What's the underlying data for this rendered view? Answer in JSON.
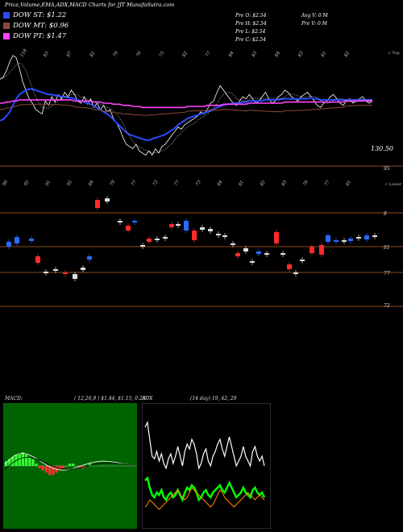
{
  "header": {
    "title": "Price,Volume,EMA,ADX,MACD Charts for JJT MunafaSutra.com"
  },
  "legend": [
    {
      "label": "DOW ST: $1.22",
      "color": "#2a4cff"
    },
    {
      "label": "DOW MT: $0.96",
      "color": "#8b4a3a"
    },
    {
      "label": "DOW PT: $1.47",
      "color": "#ff44ff"
    }
  ],
  "stats": {
    "pre_o": "Pre  O: $2.54",
    "pre_h": "Pre  H: $2.54",
    "pre_l": "Pre  L: $2.54",
    "pre_c": "Pre  C: $2.54",
    "avg_v": "Avg V: 0  M",
    "pre_v": "Pre  V: 0  M"
  },
  "price_panel": {
    "right_tag": "c Top",
    "last_price_label": "130.50",
    "axis_label": "95",
    "top_labels": [
      "118",
      "83",
      "87",
      "82",
      "79",
      "76",
      "73",
      "82",
      "77",
      "84",
      "83",
      "84",
      "83",
      "81",
      "82"
    ]
  },
  "candle_panel": {
    "right_tag": "c Lower",
    "top_labels": [
      "90",
      "95",
      "91",
      "95",
      "84",
      "79",
      "77",
      "73",
      "77",
      "73",
      "84",
      "81",
      "82",
      "83",
      "76",
      "77",
      "81"
    ],
    "axis_labels": [
      "8",
      "81",
      "77",
      "72"
    ]
  },
  "macd": {
    "label": "MACD:",
    "values": "( 12,26,9 ) $1.44, $1.15, 0.29"
  },
  "adx": {
    "label": "ADX",
    "values": "(14  day) 19,  42,  29"
  },
  "chart_data": [
    {
      "type": "line",
      "name": "Price with EMA",
      "x": [
        0,
        1,
        2,
        3,
        4,
        5,
        6,
        7,
        8,
        9,
        10,
        11,
        12,
        13,
        14,
        15,
        16,
        17,
        18,
        19,
        20,
        21,
        22,
        23,
        24,
        25,
        26,
        27,
        28,
        29,
        30,
        31,
        32,
        33,
        34,
        35,
        36,
        37,
        38,
        39,
        40,
        41,
        42,
        43,
        44,
        45,
        46,
        47,
        48,
        49,
        50,
        51,
        52,
        53,
        54,
        55,
        56,
        57,
        58,
        59,
        60,
        61,
        62,
        63,
        64,
        65,
        66,
        67,
        68,
        69,
        70,
        71,
        72,
        73,
        74,
        75,
        76,
        77,
        78,
        79,
        80,
        81,
        82,
        83,
        84,
        85,
        86,
        87,
        88,
        89,
        90,
        91,
        92,
        93,
        94,
        95,
        96,
        97,
        98,
        99,
        100,
        101,
        102,
        103,
        104,
        105,
        106,
        107,
        108,
        109,
        110,
        111,
        112,
        113,
        114,
        115
      ],
      "series": [
        {
          "color": "#ffffff",
          "values": [
            150,
            152,
            158,
            166,
            172,
            170,
            160,
            148,
            140,
            132,
            128,
            122,
            120,
            118,
            130,
            126,
            134,
            129,
            136,
            132,
            138,
            134,
            140,
            136,
            130,
            128,
            134,
            127,
            132,
            124,
            128,
            122,
            126,
            120,
            122,
            114,
            110,
            104,
            96,
            90,
            88,
            86,
            90,
            84,
            82,
            80,
            84,
            80,
            86,
            82,
            88,
            90,
            94,
            98,
            102,
            106,
            104,
            108,
            110,
            112,
            114,
            116,
            120,
            118,
            122,
            128,
            130,
            138,
            144,
            140,
            136,
            132,
            128,
            126,
            130,
            134,
            132,
            136,
            132,
            128,
            130,
            134,
            138,
            132,
            128,
            130,
            134,
            136,
            140,
            138,
            134,
            132,
            130,
            134,
            136,
            138,
            134,
            130,
            126,
            124,
            128,
            130,
            134,
            136,
            132,
            128,
            126,
            130,
            132,
            128,
            130,
            132,
            134,
            130,
            128,
            130
          ]
        },
        {
          "color": "#2a4cff",
          "values": [
            112,
            113,
            116,
            120,
            126,
            132,
            136,
            138,
            140,
            141,
            141,
            140,
            139,
            138,
            137,
            136,
            136,
            135,
            135,
            134,
            134,
            133,
            133,
            132,
            131,
            130,
            129,
            128,
            127,
            125,
            124,
            122,
            120,
            118,
            116,
            113,
            110,
            107,
            104,
            101,
            99,
            98,
            97,
            96,
            95,
            94,
            94,
            95,
            96,
            97,
            98,
            99,
            101,
            103,
            105,
            108,
            110,
            112,
            114,
            115,
            116,
            117,
            118,
            119,
            120,
            121,
            122,
            124,
            125,
            126,
            127,
            127,
            128,
            128,
            128,
            129,
            129,
            130,
            130,
            130,
            130,
            130,
            131,
            131,
            131,
            131,
            131,
            132,
            132,
            132,
            132,
            132,
            132,
            132,
            132,
            132,
            133,
            132,
            132,
            131,
            131,
            131,
            131,
            131,
            131,
            131,
            131,
            131,
            131,
            131,
            131,
            131,
            131,
            131,
            131,
            131
          ]
        },
        {
          "color": "#ff44ff",
          "values": [
            128,
            128,
            129,
            129,
            130,
            130,
            131,
            131,
            131,
            131,
            131,
            131,
            131,
            131,
            131,
            131,
            131,
            131,
            131,
            131,
            131,
            131,
            131,
            130,
            130,
            130,
            130,
            130,
            130,
            129,
            129,
            129,
            128,
            128,
            128,
            127,
            127,
            127,
            126,
            126,
            126,
            125,
            125,
            125,
            124,
            124,
            124,
            124,
            124,
            124,
            124,
            124,
            124,
            124,
            124,
            124,
            124,
            124,
            125,
            125,
            125,
            125,
            125,
            125,
            126,
            126,
            126,
            126,
            126,
            127,
            127,
            127,
            127,
            127,
            127,
            127,
            127,
            128,
            128,
            128,
            128,
            128,
            128,
            128,
            128,
            128,
            128,
            128,
            129,
            129,
            129,
            129,
            129,
            129,
            129,
            129,
            129,
            129,
            129,
            129,
            129,
            129,
            129,
            129,
            129,
            129,
            129,
            130,
            130,
            130,
            130,
            130,
            130,
            130,
            130,
            130
          ]
        }
      ]
    },
    {
      "type": "bar",
      "name": "MACD histogram",
      "values": [
        0.2,
        0.3,
        0.4,
        0.5,
        0.5,
        0.6,
        0.5,
        0.4,
        0.3,
        0.1,
        -0.1,
        -0.2,
        -0.3,
        -0.4,
        -0.4,
        -0.3,
        -0.2,
        -0.1,
        0.0,
        0.1,
        0.1,
        0.0,
        -0.1,
        -0.1,
        0.0,
        0.1
      ]
    },
    {
      "type": "line",
      "name": "ADX",
      "series": [
        {
          "name": "+DI",
          "color": "#00ff00",
          "values": [
            36,
            38,
            30,
            24,
            22,
            26,
            24,
            28,
            22,
            20,
            24,
            26,
            22,
            24,
            28,
            24,
            20,
            26,
            30,
            28,
            32,
            30,
            26,
            20,
            22,
            26,
            28,
            24,
            22,
            26,
            28,
            30,
            32,
            28,
            26,
            30,
            34,
            30,
            26,
            22,
            24,
            26,
            30,
            26,
            24,
            22,
            28,
            30,
            26,
            24,
            26,
            22
          ]
        },
        {
          "name": "-DI",
          "color": "#ff8800",
          "values": [
            14,
            16,
            20,
            18,
            16,
            14,
            12,
            14,
            16,
            18,
            20,
            22,
            24,
            26,
            28,
            24,
            22,
            20,
            22,
            26,
            30,
            28,
            26,
            24,
            22,
            20,
            18,
            16,
            14,
            16,
            20,
            24,
            28,
            26,
            22,
            20,
            18,
            16,
            14,
            16,
            18,
            20,
            22,
            24,
            26,
            24,
            22,
            20,
            22,
            24,
            22,
            20
          ]
        },
        {
          "name": "ADX",
          "color": "#ffffff",
          "values": [
            80,
            84,
            70,
            56,
            54,
            60,
            52,
            58,
            50,
            46,
            54,
            58,
            50,
            56,
            64,
            56,
            48,
            60,
            66,
            62,
            70,
            66,
            58,
            46,
            50,
            58,
            62,
            52,
            48,
            56,
            60,
            66,
            70,
            62,
            56,
            64,
            72,
            64,
            56,
            48,
            52,
            56,
            64,
            56,
            52,
            48,
            60,
            64,
            56,
            52,
            56,
            48
          ]
        }
      ]
    }
  ]
}
